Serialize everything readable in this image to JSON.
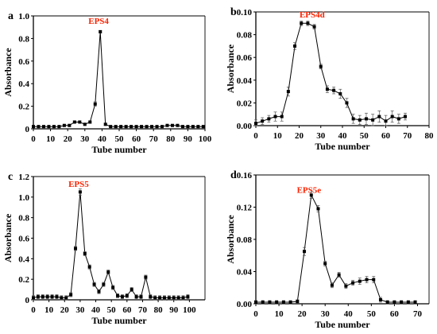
{
  "colors": {
    "peak_label": "#ff2200",
    "series": "#000000"
  },
  "chart_data": [
    {
      "type": "line",
      "panel_letter": "a",
      "peak_label": "EPS4",
      "xlabel": "Tube number",
      "ylabel": "Absorbance",
      "xlim": [
        0,
        100
      ],
      "ylim": [
        0,
        1.0
      ],
      "xticks": [
        0,
        10,
        20,
        30,
        40,
        50,
        60,
        70,
        80,
        90,
        100
      ],
      "yticks": [
        0,
        0.2,
        0.4,
        0.6,
        0.8,
        1.0
      ],
      "xtick_labels": [
        "0",
        "10",
        "20",
        "30",
        "40",
        "50",
        "60",
        "70",
        "80",
        "90",
        "100"
      ],
      "ytick_labels": [
        "0",
        "0.2",
        "0.4",
        "0.6",
        "0.8",
        "1.0"
      ],
      "peak_label_position": [
        38,
        0.93
      ],
      "series": [
        {
          "x": [
            0,
            3,
            6,
            9,
            12,
            15,
            18,
            21,
            24,
            27,
            30,
            33,
            36,
            39,
            42,
            45,
            48,
            51,
            54,
            57,
            60,
            63,
            66,
            69,
            72,
            75,
            78,
            81,
            84,
            87,
            90,
            93,
            96,
            99
          ],
          "y": [
            0.02,
            0.02,
            0.02,
            0.02,
            0.02,
            0.02,
            0.03,
            0.03,
            0.06,
            0.06,
            0.04,
            0.06,
            0.22,
            0.86,
            0.04,
            0.02,
            0.02,
            0.02,
            0.02,
            0.02,
            0.02,
            0.02,
            0.02,
            0.02,
            0.02,
            0.02,
            0.03,
            0.03,
            0.03,
            0.02,
            0.02,
            0.02,
            0.02,
            0.02
          ],
          "err": [
            0.01,
            0.01,
            0.01,
            0.01,
            0.01,
            0.01,
            0.01,
            0.01,
            0.01,
            0.01,
            0.01,
            0.01,
            0.02,
            0.01,
            0.01,
            0.01,
            0.01,
            0.01,
            0.01,
            0.01,
            0.01,
            0.01,
            0.01,
            0.01,
            0.01,
            0.01,
            0.01,
            0.01,
            0.01,
            0.01,
            0.01,
            0.01,
            0.01,
            0.01
          ]
        }
      ]
    },
    {
      "type": "line",
      "panel_letter": "b",
      "peak_label": "EPS4d",
      "xlabel": "Tube number",
      "ylabel": "Absorbance",
      "xlim": [
        0,
        80
      ],
      "ylim": [
        0,
        0.1
      ],
      "xticks": [
        0,
        10,
        20,
        30,
        40,
        50,
        60,
        70,
        80
      ],
      "yticks": [
        0,
        0.02,
        0.04,
        0.06,
        0.08,
        0.1
      ],
      "xtick_labels": [
        "0",
        "10",
        "20",
        "30",
        "40",
        "50",
        "60",
        "70",
        "80"
      ],
      "ytick_labels": [
        "0.00",
        "0.02",
        "0.04",
        "0.06",
        "0.08",
        "0.10"
      ],
      "peak_label_position": [
        26,
        0.095
      ],
      "series": [
        {
          "x": [
            0,
            3,
            6,
            9,
            12,
            15,
            18,
            21,
            24,
            27,
            30,
            33,
            36,
            39,
            42,
            45,
            48,
            51,
            54,
            57,
            60,
            63,
            66,
            69
          ],
          "y": [
            0.002,
            0.004,
            0.006,
            0.008,
            0.008,
            0.03,
            0.07,
            0.09,
            0.09,
            0.087,
            0.052,
            0.032,
            0.031,
            0.028,
            0.02,
            0.006,
            0.005,
            0.006,
            0.005,
            0.008,
            0.004,
            0.008,
            0.006,
            0.008
          ],
          "err": [
            0.003,
            0.003,
            0.003,
            0.004,
            0.004,
            0.004,
            0.003,
            0.002,
            0.002,
            0.002,
            0.002,
            0.003,
            0.003,
            0.004,
            0.004,
            0.004,
            0.004,
            0.005,
            0.005,
            0.005,
            0.005,
            0.005,
            0.004,
            0.003
          ]
        }
      ]
    },
    {
      "type": "line",
      "panel_letter": "c",
      "peak_label": "EPS5",
      "xlabel": "Tube number",
      "ylabel": "Absorbance",
      "xlim": [
        0,
        110
      ],
      "ylim": [
        0,
        1.2
      ],
      "xticks": [
        0,
        10,
        20,
        30,
        40,
        50,
        60,
        70,
        80,
        90,
        100
      ],
      "yticks": [
        0,
        0.2,
        0.4,
        0.6,
        0.8,
        1.0,
        1.2
      ],
      "xtick_labels": [
        "0",
        "10",
        "20",
        "30",
        "40",
        "50",
        "60",
        "70",
        "80",
        "90",
        "100"
      ],
      "ytick_labels": [
        "0",
        "0.2",
        "0.4",
        "0.6",
        "0.8",
        "1.0",
        "1.2"
      ],
      "peak_label_position": [
        29,
        1.1
      ],
      "series": [
        {
          "x": [
            0,
            3,
            6,
            9,
            12,
            15,
            18,
            21,
            24,
            27,
            30,
            33,
            36,
            39,
            42,
            45,
            48,
            51,
            54,
            57,
            60,
            63,
            66,
            69,
            72,
            75,
            78,
            81,
            84,
            87,
            90,
            93,
            96,
            99
          ],
          "y": [
            0.02,
            0.03,
            0.03,
            0.03,
            0.03,
            0.03,
            0.02,
            0.02,
            0.05,
            0.5,
            1.05,
            0.45,
            0.32,
            0.15,
            0.08,
            0.15,
            0.27,
            0.12,
            0.04,
            0.03,
            0.04,
            0.1,
            0.03,
            0.03,
            0.22,
            0.03,
            0.02,
            0.02,
            0.02,
            0.02,
            0.02,
            0.02,
            0.02,
            0.03
          ],
          "err": [
            0.02,
            0.02,
            0.02,
            0.02,
            0.02,
            0.02,
            0.02,
            0.02,
            0.02,
            0.02,
            0.03,
            0.02,
            0.02,
            0.02,
            0.02,
            0.02,
            0.02,
            0.02,
            0.02,
            0.02,
            0.02,
            0.02,
            0.02,
            0.02,
            0.02,
            0.02,
            0.02,
            0.02,
            0.02,
            0.02,
            0.02,
            0.02,
            0.02,
            0.02
          ]
        }
      ]
    },
    {
      "type": "line",
      "panel_letter": "d",
      "peak_label": "EPS5e",
      "xlabel": "Tube number",
      "ylabel": "Absorbance",
      "xlim": [
        0,
        75
      ],
      "ylim": [
        0,
        0.16
      ],
      "xticks": [
        0,
        10,
        20,
        30,
        40,
        50,
        60,
        70
      ],
      "yticks": [
        0,
        0.04,
        0.08,
        0.12,
        0.16
      ],
      "xtick_labels": [
        "0",
        "10",
        "20",
        "30",
        "40",
        "50",
        "60",
        "70"
      ],
      "ytick_labels": [
        "0.00",
        "0.04",
        "0.08",
        "0.12",
        "0.16"
      ],
      "peak_label_position": [
        23,
        0.138
      ],
      "series": [
        {
          "x": [
            0,
            3,
            6,
            9,
            12,
            15,
            18,
            21,
            24,
            27,
            30,
            33,
            36,
            39,
            42,
            45,
            48,
            51,
            54,
            57,
            60,
            63,
            66,
            69
          ],
          "y": [
            0.002,
            0.002,
            0.002,
            0.002,
            0.002,
            0.002,
            0.003,
            0.065,
            0.135,
            0.118,
            0.05,
            0.023,
            0.036,
            0.022,
            0.026,
            0.028,
            0.03,
            0.03,
            0.005,
            0.002,
            0.002,
            0.002,
            0.002,
            0.002
          ],
          "err": [
            0.002,
            0.002,
            0.002,
            0.002,
            0.002,
            0.002,
            0.002,
            0.005,
            0.004,
            0.004,
            0.003,
            0.003,
            0.003,
            0.003,
            0.003,
            0.004,
            0.004,
            0.004,
            0.003,
            0.002,
            0.002,
            0.002,
            0.002,
            0.002
          ]
        }
      ]
    }
  ]
}
